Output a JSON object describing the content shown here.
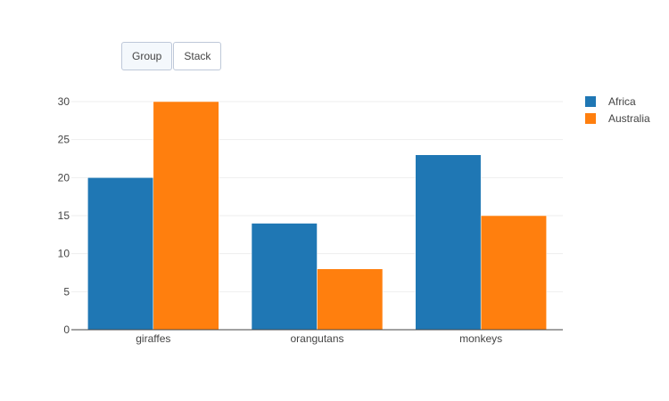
{
  "buttons": {
    "group_label": "Group",
    "stack_label": "Stack",
    "active": "Group"
  },
  "chart_data": {
    "type": "bar",
    "barmode": "group",
    "categories": [
      "giraffes",
      "orangutans",
      "monkeys"
    ],
    "series": [
      {
        "name": "Africa",
        "values": [
          20,
          14,
          23
        ],
        "color": "#1f77b4"
      },
      {
        "name": "Australia",
        "values": [
          30,
          8,
          15
        ],
        "color": "#ff7f0e"
      }
    ],
    "ylim": [
      0,
      30
    ],
    "yticks": [
      0,
      5,
      10,
      15,
      20,
      25,
      30
    ],
    "grid": true,
    "legend_position": "right",
    "title": "",
    "xlabel": "",
    "ylabel": ""
  }
}
